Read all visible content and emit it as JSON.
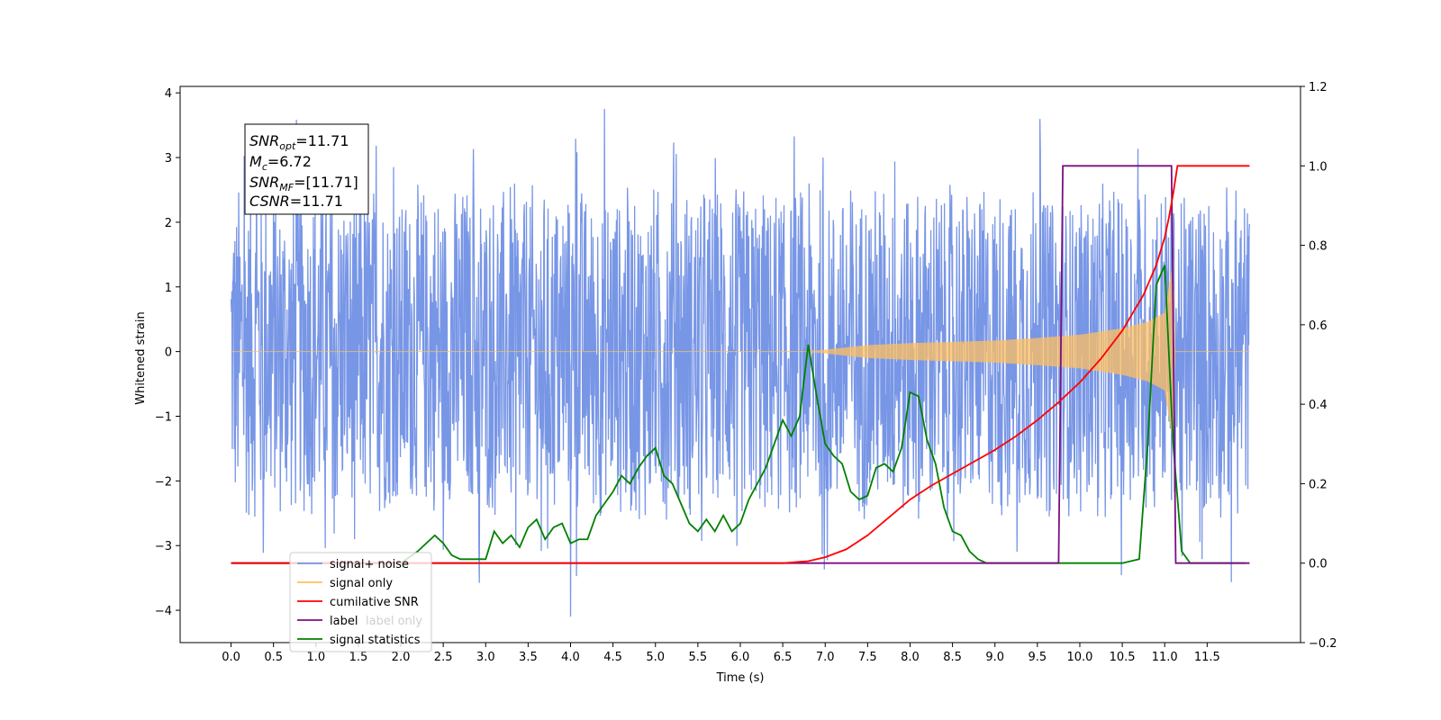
{
  "chart_data": {
    "type": "line",
    "xlabel": "Time (s)",
    "ylabel": "Whitened strain",
    "xlim": [
      -0.6,
      12.6
    ],
    "ylim_left": [
      -4.5,
      4.1
    ],
    "ylim_right": [
      -0.2,
      1.2
    ],
    "x_ticks": [
      0.0,
      0.5,
      1.0,
      1.5,
      2.0,
      2.5,
      3.0,
      3.5,
      4.0,
      4.5,
      5.0,
      5.5,
      6.0,
      6.5,
      7.0,
      7.5,
      8.0,
      8.5,
      9.0,
      9.5,
      10.0,
      10.5,
      11.0,
      11.5
    ],
    "x_tick_labels": [
      "0.0",
      "0.5",
      "1.0",
      "1.5",
      "2.0",
      "2.5",
      "3.0",
      "3.5",
      "4.0",
      "4.5",
      "5.0",
      "5.5",
      "6.0",
      "6.5",
      "7.0",
      "7.5",
      "8.0",
      "8.5",
      "9.0",
      "9.5",
      "10.0",
      "10.5",
      "11.0",
      "11.5"
    ],
    "y_left_ticks": [
      -4,
      -3,
      -2,
      -1,
      0,
      1,
      2,
      3,
      4
    ],
    "y_left_tick_labels": [
      "−4",
      "−3",
      "−2",
      "−1",
      "0",
      "1",
      "2",
      "3",
      "4"
    ],
    "y_right_ticks": [
      -0.2,
      0.0,
      0.2,
      0.4,
      0.6,
      0.8,
      1.0,
      1.2
    ],
    "y_right_tick_labels": [
      "−0.2",
      "0.0",
      "0.2",
      "0.4",
      "0.6",
      "0.8",
      "1.0",
      "1.2"
    ],
    "grid": false,
    "legend_position": "lower-left",
    "annotation": {
      "snr_opt": {
        "sym": "SNR",
        "sub": "opt",
        "val": "=11.71"
      },
      "mc": {
        "sym": "M",
        "sub": "c",
        "val": "=6.72"
      },
      "snr_mf": {
        "sym": "SNR",
        "sub": "MF",
        "val": "=[11.71]"
      },
      "csnr": {
        "sym": "CSNR",
        "sub": "",
        "val": "=11.71"
      }
    },
    "series": [
      {
        "name": "signal+ noise",
        "axis": "left",
        "color": "#7896e6",
        "kind": "noise",
        "x_range": [
          0.0,
          12.0
        ],
        "envelope_upper": 2.6,
        "envelope_lower": -2.3,
        "max_spike": 3.75,
        "min_spike": -4.1
      },
      {
        "name": "signal only",
        "axis": "left",
        "color": "#ffbf60",
        "kind": "chirp",
        "x": [
          0.0,
          6.8,
          7.5,
          8.0,
          8.5,
          9.0,
          9.5,
          10.0,
          10.5,
          10.8,
          11.0,
          11.1,
          11.12,
          12.0
        ],
        "amplitude": [
          0.0,
          0.0,
          0.1,
          0.13,
          0.15,
          0.17,
          0.21,
          0.26,
          0.36,
          0.46,
          0.6,
          1.4,
          0.0,
          0.0
        ]
      },
      {
        "name": "cumilative SNR",
        "axis": "right",
        "color": "#ff0000",
        "x": [
          0.0,
          6.5,
          6.8,
          7.0,
          7.25,
          7.5,
          7.75,
          8.0,
          8.25,
          8.5,
          8.75,
          9.0,
          9.25,
          9.5,
          9.75,
          10.0,
          10.25,
          10.5,
          10.75,
          10.9,
          11.0,
          11.05,
          11.1,
          11.15,
          12.0
        ],
        "values": [
          0.0,
          0.0,
          0.005,
          0.015,
          0.035,
          0.07,
          0.115,
          0.16,
          0.195,
          0.225,
          0.255,
          0.285,
          0.32,
          0.36,
          0.405,
          0.455,
          0.515,
          0.585,
          0.675,
          0.75,
          0.82,
          0.87,
          0.93,
          1.0,
          1.0
        ]
      },
      {
        "name": "label",
        "axis": "right",
        "color": "#7a0f80",
        "x": [
          0.0,
          9.75,
          9.8,
          11.08,
          11.13,
          12.0
        ],
        "values": [
          0.0,
          0.0,
          1.0,
          1.0,
          0.0,
          0.0
        ]
      },
      {
        "name": "label only",
        "axis": "right",
        "color": "#dddddd",
        "x": [],
        "values": []
      },
      {
        "name": "signal statistics",
        "axis": "right",
        "color": "#008000",
        "x": [
          0.0,
          2.0,
          2.2,
          2.4,
          2.5,
          2.6,
          2.7,
          2.8,
          2.9,
          3.0,
          3.1,
          3.2,
          3.3,
          3.4,
          3.5,
          3.6,
          3.7,
          3.8,
          3.9,
          4.0,
          4.1,
          4.2,
          4.3,
          4.4,
          4.5,
          4.6,
          4.7,
          4.8,
          4.9,
          5.0,
          5.1,
          5.2,
          5.3,
          5.4,
          5.5,
          5.6,
          5.7,
          5.8,
          5.9,
          6.0,
          6.1,
          6.2,
          6.3,
          6.4,
          6.5,
          6.6,
          6.7,
          6.8,
          6.9,
          7.0,
          7.1,
          7.2,
          7.3,
          7.4,
          7.5,
          7.6,
          7.7,
          7.8,
          7.9,
          8.0,
          8.1,
          8.2,
          8.3,
          8.4,
          8.5,
          8.6,
          8.7,
          8.8,
          8.9,
          9.0,
          9.5,
          10.0,
          10.5,
          10.7,
          10.8,
          10.9,
          11.0,
          11.1,
          11.2,
          11.3,
          11.95
        ],
        "values": [
          0.0,
          0.0,
          0.03,
          0.07,
          0.05,
          0.02,
          0.01,
          0.01,
          0.01,
          0.01,
          0.08,
          0.05,
          0.07,
          0.04,
          0.09,
          0.11,
          0.06,
          0.09,
          0.1,
          0.05,
          0.06,
          0.06,
          0.12,
          0.15,
          0.18,
          0.22,
          0.2,
          0.24,
          0.27,
          0.29,
          0.22,
          0.2,
          0.15,
          0.1,
          0.08,
          0.11,
          0.08,
          0.12,
          0.08,
          0.1,
          0.16,
          0.2,
          0.24,
          0.3,
          0.36,
          0.32,
          0.37,
          0.55,
          0.42,
          0.3,
          0.27,
          0.25,
          0.18,
          0.16,
          0.17,
          0.24,
          0.25,
          0.23,
          0.29,
          0.43,
          0.42,
          0.31,
          0.25,
          0.14,
          0.08,
          0.07,
          0.03,
          0.01,
          0.0,
          0.0,
          0.0,
          0.0,
          0.0,
          0.01,
          0.3,
          0.7,
          0.75,
          0.3,
          0.03,
          0.0,
          0.0
        ]
      }
    ]
  }
}
